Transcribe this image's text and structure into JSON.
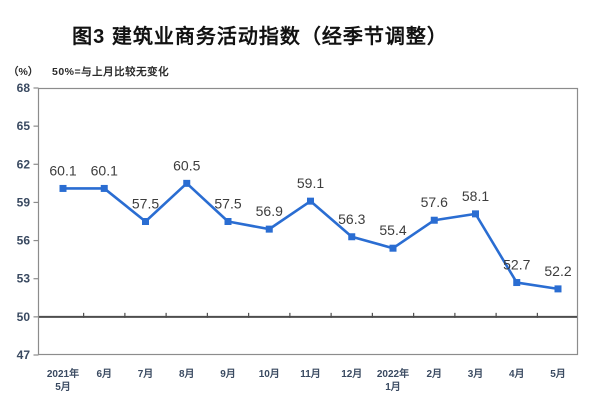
{
  "page": {
    "title": "图3 建筑业商务活动指数（经季节调整）"
  },
  "chart_data": {
    "type": "line",
    "title": "图3 建筑业商务活动指数（经季节调整）",
    "unit_label": "（%）",
    "note": "50%=与上月比较无变化",
    "categories": [
      "2021年5月",
      "6月",
      "7月",
      "8月",
      "9月",
      "10月",
      "11月",
      "12月",
      "2022年1月",
      "2月",
      "3月",
      "4月",
      "5月"
    ],
    "category_label_lines": [
      [
        "2021年",
        "5月"
      ],
      [
        "6月"
      ],
      [
        "7月"
      ],
      [
        "8月"
      ],
      [
        "9月"
      ],
      [
        "10月"
      ],
      [
        "11月"
      ],
      [
        "12月"
      ],
      [
        "2022年",
        "1月"
      ],
      [
        "2月"
      ],
      [
        "3月"
      ],
      [
        "4月"
      ],
      [
        "5月"
      ]
    ],
    "values": [
      60.1,
      60.1,
      57.5,
      60.5,
      57.5,
      56.9,
      59.1,
      56.3,
      55.4,
      57.6,
      58.1,
      52.7,
      52.2
    ],
    "data_labels": [
      "60.1",
      "60.1",
      "57.5",
      "60.5",
      "57.5",
      "56.9",
      "59.1",
      "56.3",
      "55.4",
      "57.6",
      "58.1",
      "52.7",
      "52.2"
    ],
    "y_ticks": [
      47,
      50,
      53,
      56,
      59,
      62,
      65,
      68
    ],
    "ylim": [
      47,
      68
    ],
    "reference_line": 50,
    "grid": false,
    "legend": false,
    "marker": "square",
    "colors": {
      "line": "#2A6DD2",
      "marker": "#2A6DD2",
      "plot_border": "#8c8c8c",
      "reference_line": "#4d4d4d",
      "data_label": "#3d3d3d",
      "tick_label": "#3a4a61",
      "title": "#121212"
    }
  }
}
